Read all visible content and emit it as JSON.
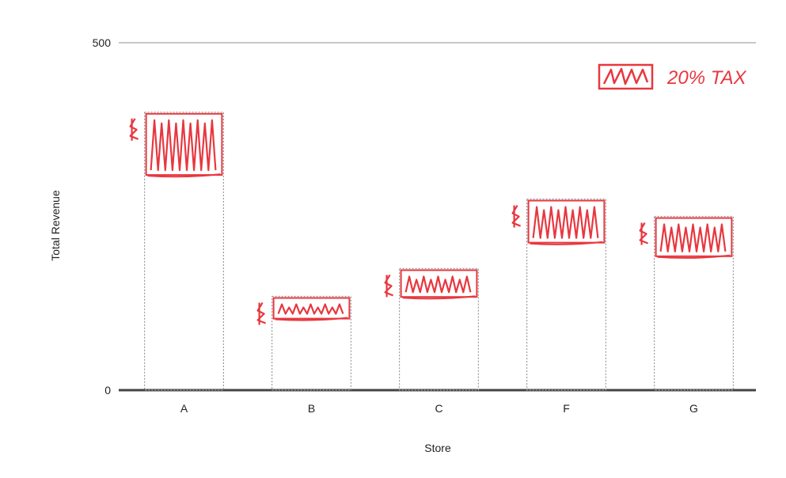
{
  "chart_data": {
    "type": "bar",
    "xlabel": "Store",
    "ylabel": "Total Revenue",
    "categories": [
      "A",
      "B",
      "C",
      "F",
      "G"
    ],
    "values": [
      400,
      135,
      175,
      275,
      250
    ],
    "ylim": [
      0,
      500
    ],
    "y_ticks": [
      "0",
      "500"
    ],
    "grid": false,
    "bar_style": "light gray dotted outline, no fill",
    "annotation": {
      "handwritten_text": "20% TAX",
      "color": "#e8373f",
      "note": "handwritten red scribbled boxes drawn at the top of each bar, with a legend box at top-right"
    },
    "axis_color": "#444444"
  }
}
